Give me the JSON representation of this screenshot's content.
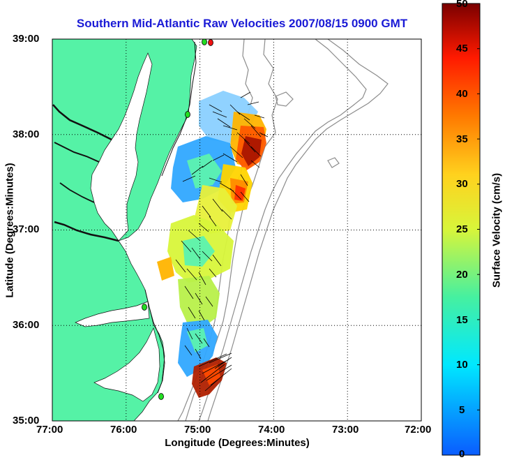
{
  "title": "Southern Mid-Atlantic Raw Velocities 2007/08/15 0900 GMT",
  "axes": {
    "xlabel": "Longitude (Degrees:Minutes)",
    "ylabel": "Latitude (Degrees:Minutes)",
    "x_ticks": [
      "77:00",
      "76:00",
      "75:00",
      "74:00",
      "73:00",
      "72:00"
    ],
    "y_ticks": [
      "39:00",
      "38:00",
      "37:00",
      "36:00",
      "35:00"
    ],
    "xlim": [
      -77,
      -72
    ],
    "ylim": [
      35,
      39
    ]
  },
  "colorbar": {
    "label": "Surface Velocity (cm/s)",
    "ticks": [
      "50",
      "45",
      "40",
      "35",
      "30",
      "25",
      "20",
      "15",
      "10",
      "5",
      "0"
    ],
    "range": [
      0,
      50
    ]
  },
  "colors": {
    "land": "#55f2a6",
    "water": "#ffffff",
    "title": "#1a1ad6",
    "contour": "#8c8c8c",
    "grid": "#000000",
    "station": "#22dd22",
    "station_alert": "#ee1111"
  }
}
